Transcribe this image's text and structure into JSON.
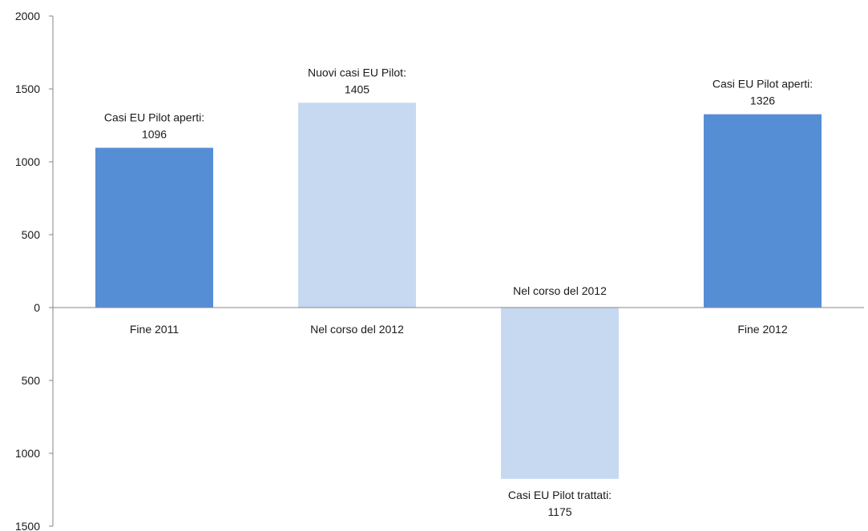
{
  "chart_data": {
    "type": "bar",
    "categories": [
      "Fine 2011",
      "Nel corso del 2012",
      "Nel corso del 2012",
      "Fine 2012"
    ],
    "values": [
      1096,
      1405,
      -1175,
      1326
    ],
    "data_labels": [
      [
        "Casi EU Pilot aperti:",
        "1096"
      ],
      [
        "Nuovi casi EU Pilot:",
        "1405"
      ],
      [
        "Casi EU Pilot trattati:",
        "1175"
      ],
      [
        "Casi EU Pilot aperti:",
        "1326"
      ]
    ],
    "colors": [
      "#558ed5",
      "#c6d9f1",
      "#c6d9f1",
      "#558ed5"
    ],
    "ylim": [
      -1500,
      2000
    ],
    "yticks": [
      2000,
      1500,
      1000,
      500,
      0,
      -500,
      -1000,
      -1500
    ],
    "ytick_labels": [
      "2000",
      "1500",
      "1000",
      "500",
      "0",
      "500",
      "1000",
      "1500"
    ],
    "grid": false,
    "legend": "none",
    "title": "",
    "xlabel": "",
    "ylabel": ""
  }
}
